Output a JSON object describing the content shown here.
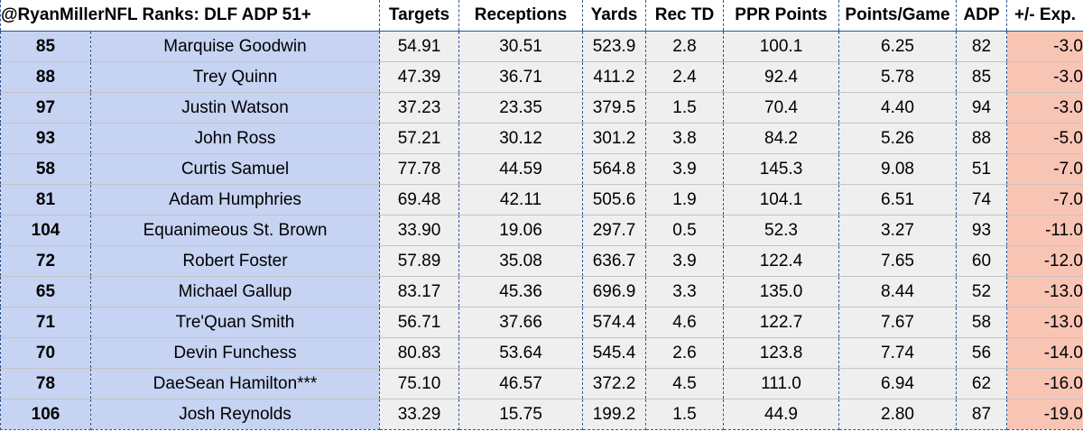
{
  "header": {
    "title": "@RyanMillerNFL Ranks: DLF ADP 51+",
    "columns": [
      "Targets",
      "Receptions",
      "Yards",
      "Rec TD",
      "PPR Points",
      "Points/Game",
      "ADP",
      "+/- Exp."
    ]
  },
  "rows": [
    {
      "rank": "85",
      "player": "Marquise Goodwin",
      "targets": "54.91",
      "receptions": "30.51",
      "yards": "523.9",
      "rec_td": "2.8",
      "ppr_points": "100.1",
      "points_per_game": "6.25",
      "adp": "82",
      "diff": "-3.0"
    },
    {
      "rank": "88",
      "player": "Trey Quinn",
      "targets": "47.39",
      "receptions": "36.71",
      "yards": "411.2",
      "rec_td": "2.4",
      "ppr_points": "92.4",
      "points_per_game": "5.78",
      "adp": "85",
      "diff": "-3.0"
    },
    {
      "rank": "97",
      "player": "Justin Watson",
      "targets": "37.23",
      "receptions": "23.35",
      "yards": "379.5",
      "rec_td": "1.5",
      "ppr_points": "70.4",
      "points_per_game": "4.40",
      "adp": "94",
      "diff": "-3.0"
    },
    {
      "rank": "93",
      "player": "John Ross",
      "targets": "57.21",
      "receptions": "30.12",
      "yards": "301.2",
      "rec_td": "3.8",
      "ppr_points": "84.2",
      "points_per_game": "5.26",
      "adp": "88",
      "diff": "-5.0"
    },
    {
      "rank": "58",
      "player": "Curtis Samuel",
      "targets": "77.78",
      "receptions": "44.59",
      "yards": "564.8",
      "rec_td": "3.9",
      "ppr_points": "145.3",
      "points_per_game": "9.08",
      "adp": "51",
      "diff": "-7.0"
    },
    {
      "rank": "81",
      "player": "Adam Humphries",
      "targets": "69.48",
      "receptions": "42.11",
      "yards": "505.6",
      "rec_td": "1.9",
      "ppr_points": "104.1",
      "points_per_game": "6.51",
      "adp": "74",
      "diff": "-7.0"
    },
    {
      "rank": "104",
      "player": "Equanimeous St. Brown",
      "targets": "33.90",
      "receptions": "19.06",
      "yards": "297.7",
      "rec_td": "0.5",
      "ppr_points": "52.3",
      "points_per_game": "3.27",
      "adp": "93",
      "diff": "-11.0"
    },
    {
      "rank": "72",
      "player": "Robert Foster",
      "targets": "57.89",
      "receptions": "35.08",
      "yards": "636.7",
      "rec_td": "3.9",
      "ppr_points": "122.4",
      "points_per_game": "7.65",
      "adp": "60",
      "diff": "-12.0"
    },
    {
      "rank": "65",
      "player": "Michael Gallup",
      "targets": "83.17",
      "receptions": "45.36",
      "yards": "696.9",
      "rec_td": "3.3",
      "ppr_points": "135.0",
      "points_per_game": "8.44",
      "adp": "52",
      "diff": "-13.0"
    },
    {
      "rank": "71",
      "player": "Tre'Quan Smith",
      "targets": "56.71",
      "receptions": "37.66",
      "yards": "574.4",
      "rec_td": "4.6",
      "ppr_points": "122.7",
      "points_per_game": "7.67",
      "adp": "58",
      "diff": "-13.0"
    },
    {
      "rank": "70",
      "player": "Devin Funchess",
      "targets": "80.83",
      "receptions": "53.64",
      "yards": "545.4",
      "rec_td": "2.6",
      "ppr_points": "123.8",
      "points_per_game": "7.74",
      "adp": "56",
      "diff": "-14.0"
    },
    {
      "rank": "78",
      "player": "DaeSean Hamilton***",
      "targets": "75.10",
      "receptions": "46.57",
      "yards": "372.2",
      "rec_td": "4.5",
      "ppr_points": "111.0",
      "points_per_game": "6.94",
      "adp": "62",
      "diff": "-16.0"
    },
    {
      "rank": "106",
      "player": "Josh Reynolds",
      "targets": "33.29",
      "receptions": "15.75",
      "yards": "199.2",
      "rec_td": "1.5",
      "ppr_points": "44.9",
      "points_per_game": "2.80",
      "adp": "87",
      "diff": "-19.0"
    }
  ],
  "colors": {
    "name_column_bg": "#c6d3f2",
    "stat_column_bg": "#efefef",
    "diff_column_bg": "#f8c4b4",
    "dashed_border": "#2f5597"
  }
}
